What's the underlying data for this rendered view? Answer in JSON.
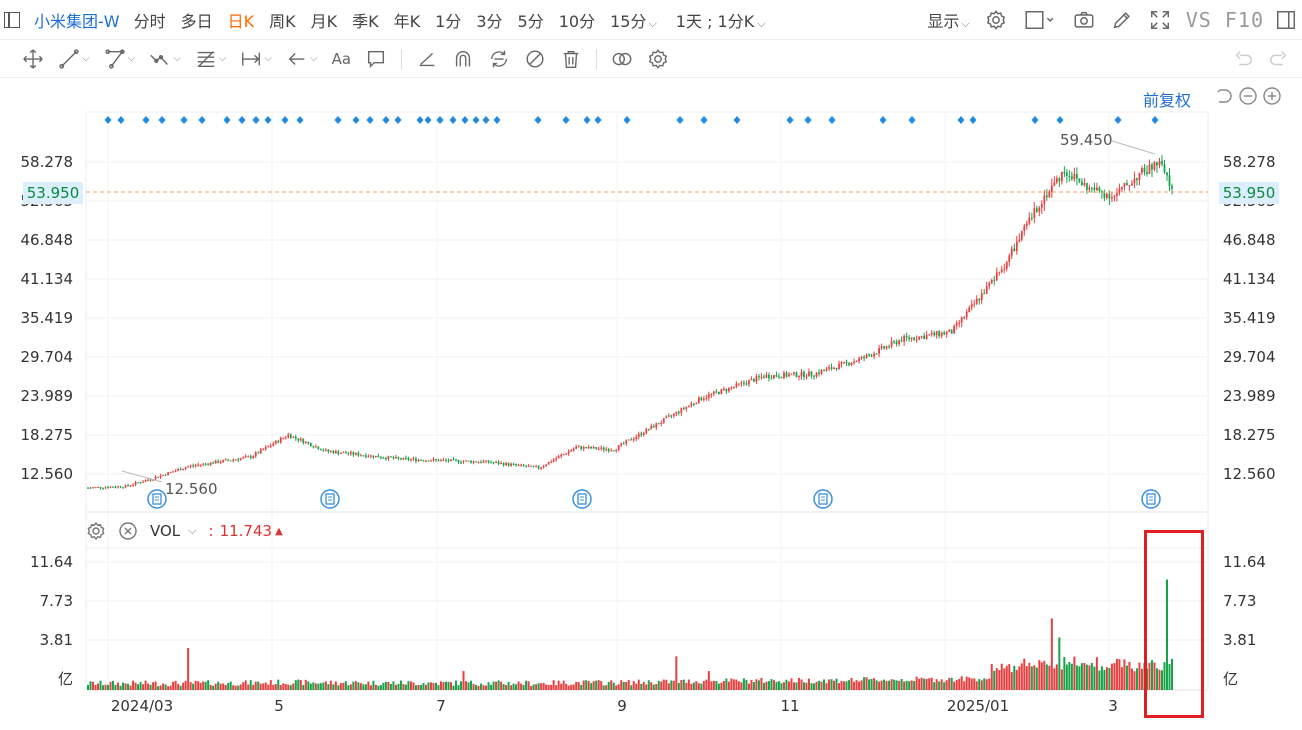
{
  "header": {
    "stock_name": "小米集团-W",
    "tabs": [
      {
        "label": "分时",
        "active": false
      },
      {
        "label": "多日",
        "active": false
      },
      {
        "label": "日K",
        "active": true
      },
      {
        "label": "周K",
        "active": false
      },
      {
        "label": "月K",
        "active": false
      },
      {
        "label": "季K",
        "active": false
      },
      {
        "label": "年K",
        "active": false
      },
      {
        "label": "1分",
        "active": false
      },
      {
        "label": "3分",
        "active": false
      },
      {
        "label": "5分",
        "active": false
      },
      {
        "label": "10分",
        "active": false
      },
      {
        "label": "15分",
        "active": false,
        "dropdown": true
      }
    ],
    "intraday_selector": "1天 ; 1分K",
    "display_label": "显示",
    "vs_f10": "VS F10"
  },
  "drawing_toolbar": {
    "text_tool_label": "Aa"
  },
  "chart": {
    "adjust_label": "前复权",
    "price_axis_labels": [
      "58.278",
      "52.563",
      "46.848",
      "41.134",
      "35.419",
      "29.704",
      "23.989",
      "18.275",
      "12.560"
    ],
    "current_price": "53.950",
    "high_label": "59.450",
    "low_label": "12.560",
    "x_axis_labels": [
      "2024/03",
      "5",
      "7",
      "9",
      "11",
      "2025/01",
      "3"
    ],
    "colors": {
      "up": "#e84040",
      "down": "#16a34a",
      "accent": "#1f6fd6",
      "price_line": "#f0a060"
    }
  },
  "volume": {
    "indicator": "VOL",
    "value": "11.743",
    "axis_labels": [
      "11.64",
      "7.73",
      "3.81"
    ],
    "unit": "亿"
  },
  "chart_data": {
    "type": "candlestick",
    "y_range": [
      10.0,
      62.0
    ],
    "volume_range": [
      0,
      13.5
    ],
    "checkpoints": [
      {
        "x": 0,
        "price": 13.3
      },
      {
        "x": 15,
        "price": 13.5
      },
      {
        "x": 25,
        "price": 14.5
      },
      {
        "x": 40,
        "price": 16.2
      },
      {
        "x": 65,
        "price": 17.5
      },
      {
        "x": 80,
        "price": 20.5
      },
      {
        "x": 95,
        "price": 18.3
      },
      {
        "x": 125,
        "price": 17.2
      },
      {
        "x": 160,
        "price": 16.8
      },
      {
        "x": 180,
        "price": 16.0
      },
      {
        "x": 195,
        "price": 18.8
      },
      {
        "x": 210,
        "price": 18.5
      },
      {
        "x": 225,
        "price": 21.5
      },
      {
        "x": 245,
        "price": 25.5
      },
      {
        "x": 270,
        "price": 28.5
      },
      {
        "x": 290,
        "price": 28.8
      },
      {
        "x": 310,
        "price": 31.0
      },
      {
        "x": 325,
        "price": 33.5
      },
      {
        "x": 345,
        "price": 34.5
      },
      {
        "x": 365,
        "price": 43.0
      },
      {
        "x": 380,
        "price": 52.0
      },
      {
        "x": 390,
        "price": 56.5
      },
      {
        "x": 400,
        "price": 54.0
      },
      {
        "x": 410,
        "price": 53.0
      },
      {
        "x": 420,
        "price": 56.0
      },
      {
        "x": 428,
        "price": 57.5
      },
      {
        "x": 433,
        "price": 53.95
      }
    ],
    "volume_spikes": [
      {
        "x": 40,
        "value": 4.0
      },
      {
        "x": 150,
        "value": 1.8
      },
      {
        "x": 235,
        "value": 3.2
      },
      {
        "x": 248,
        "value": 1.8
      },
      {
        "x": 365,
        "value": 2.5
      },
      {
        "x": 385,
        "value": 6.8
      },
      {
        "x": 388,
        "value": 5.0
      },
      {
        "x": 431,
        "value": 10.5
      }
    ]
  }
}
